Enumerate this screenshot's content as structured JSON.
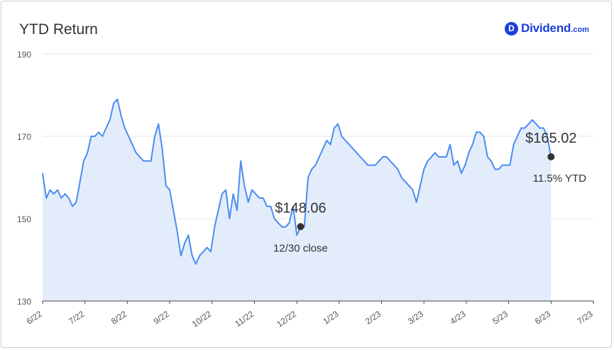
{
  "header": {
    "title": "YTD Return",
    "brand": {
      "logo_letter": "D",
      "name": "Dividend",
      "tld": ".com",
      "color": "#1c3fd9"
    }
  },
  "chart_data": {
    "type": "area",
    "title": "YTD Return",
    "xlabel": "",
    "ylabel": "",
    "ylim": [
      130,
      190
    ],
    "y_ticks": [
      "130",
      "150",
      "170",
      "190"
    ],
    "x_ticks": [
      "6/22",
      "7/22",
      "8/22",
      "9/22",
      "10/22",
      "11/22",
      "12/22",
      "1/23",
      "2/23",
      "3/23",
      "4/23",
      "5/23",
      "6/23",
      "7/23"
    ],
    "grid": true,
    "colors": {
      "line": "#4a8df0",
      "fill": "#e3ecfb"
    },
    "series": [
      {
        "values": [
          161,
          155,
          157,
          156,
          157,
          155,
          156,
          155,
          153,
          154,
          159,
          164,
          166,
          170,
          170,
          171,
          170,
          172,
          174,
          178,
          179,
          175,
          172,
          170,
          168,
          166,
          165,
          164,
          164,
          164,
          170,
          173,
          167,
          158,
          157,
          152,
          147,
          141,
          144,
          146,
          141,
          139,
          141,
          142,
          143,
          142,
          148,
          152,
          156,
          157,
          150,
          156,
          152,
          164,
          158,
          154,
          157,
          156,
          155,
          155,
          153,
          153,
          150,
          149,
          148,
          148,
          149,
          153,
          146,
          148,
          148,
          160,
          162,
          163,
          165,
          167,
          169,
          168,
          172,
          173,
          170,
          169,
          168,
          167,
          166,
          165,
          164,
          163,
          163,
          163,
          164,
          165,
          165,
          164,
          163,
          162,
          160,
          159,
          158,
          157,
          154,
          158,
          162,
          164,
          165,
          166,
          165,
          165,
          165,
          168,
          163,
          164,
          161,
          163,
          166,
          168,
          171,
          171,
          170,
          165,
          164,
          162,
          162,
          163,
          163,
          163,
          168,
          170,
          172,
          172,
          173,
          174,
          173,
          172,
          172,
          170,
          165
        ]
      }
    ],
    "annotations": [
      {
        "label": "$148.06",
        "sublabel": "12/30 close",
        "x_index": 69,
        "y": 148.06
      },
      {
        "label": "$165.02",
        "sublabel": "11.5% YTD",
        "x_index": 136,
        "y": 165.02
      }
    ]
  }
}
